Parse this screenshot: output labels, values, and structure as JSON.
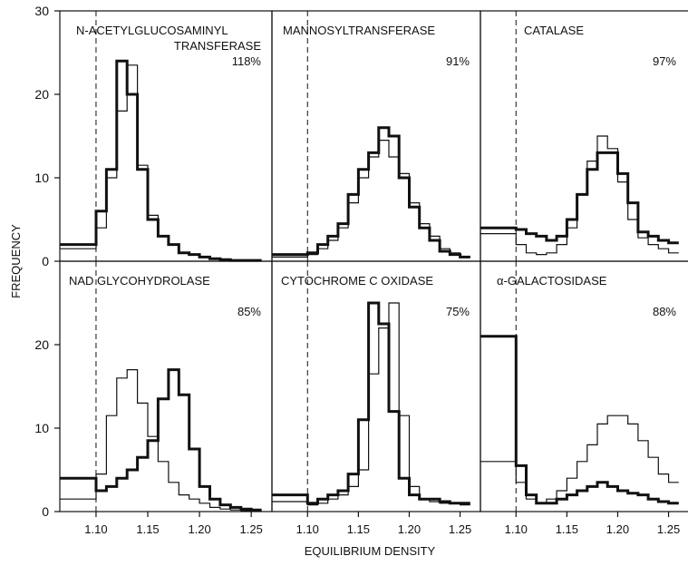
{
  "figure": {
    "ylabel": "FREQUENCY",
    "xlabel": "EQUILIBRIUM DENSITY"
  },
  "chart_data": [
    {
      "type": "step",
      "title_lines": [
        "N-ACETYLGLUCOSAMINYL",
        "TRANSFERASE"
      ],
      "percent": "118%",
      "xlim": [
        1.065,
        1.27
      ],
      "ylim": [
        0,
        30
      ],
      "yticks": [
        "0",
        "10",
        "20",
        "30"
      ],
      "xticks": [],
      "reference_x": 1.1,
      "edges": [
        1.065,
        1.1,
        1.11,
        1.12,
        1.13,
        1.14,
        1.15,
        1.16,
        1.17,
        1.18,
        1.19,
        1.2,
        1.21,
        1.22,
        1.23,
        1.24,
        1.25,
        1.26
      ],
      "series": [
        {
          "style": "thick",
          "values": [
            2,
            6,
            11,
            24,
            20,
            11,
            5,
            3,
            2,
            1,
            0.8,
            0.5,
            0.3,
            0.2,
            0.1,
            0.1,
            0.1
          ]
        },
        {
          "style": "thin",
          "values": [
            1.5,
            4,
            10,
            18,
            23.5,
            11.5,
            5.5,
            3,
            2,
            1,
            0.8,
            0.5,
            0.3,
            0.2,
            0.1,
            0.1,
            0.1
          ]
        }
      ]
    },
    {
      "type": "step",
      "title_lines": [
        "MANNOSYLTRANSFERASE"
      ],
      "percent": "91%",
      "xlim": [
        1.065,
        1.27
      ],
      "ylim": [
        0,
        30
      ],
      "yticks": [],
      "xticks": [],
      "reference_x": 1.1,
      "edges": [
        1.065,
        1.1,
        1.11,
        1.12,
        1.13,
        1.14,
        1.15,
        1.16,
        1.17,
        1.18,
        1.19,
        1.2,
        1.21,
        1.22,
        1.23,
        1.24,
        1.25,
        1.26
      ],
      "series": [
        {
          "style": "thick",
          "values": [
            0.8,
            1,
            2,
            3,
            4.5,
            8,
            11,
            13,
            16,
            15,
            10,
            6.5,
            4,
            2.5,
            1.2,
            0.8,
            0.5
          ]
        },
        {
          "style": "thin",
          "values": [
            0.5,
            0.8,
            1.5,
            2.5,
            4,
            7,
            10,
            12.5,
            14.5,
            12.5,
            10.5,
            7,
            4.5,
            3,
            1.5,
            1,
            0.5
          ]
        }
      ]
    },
    {
      "type": "step",
      "title_lines": [
        "CATALASE"
      ],
      "percent": "97%",
      "xlim": [
        1.065,
        1.27
      ],
      "ylim": [
        0,
        30
      ],
      "yticks": [],
      "xticks": [],
      "reference_x": 1.1,
      "edges": [
        1.065,
        1.1,
        1.11,
        1.12,
        1.13,
        1.14,
        1.15,
        1.16,
        1.17,
        1.18,
        1.19,
        1.2,
        1.21,
        1.22,
        1.23,
        1.24,
        1.25,
        1.26
      ],
      "series": [
        {
          "style": "thick",
          "values": [
            4,
            3.8,
            3.3,
            3,
            2.5,
            3,
            5,
            8,
            11,
            13,
            13,
            10.5,
            7,
            3.5,
            3,
            2.5,
            2.2
          ]
        },
        {
          "style": "thin",
          "values": [
            3.3,
            2,
            1,
            0.8,
            1,
            2,
            4,
            8,
            12,
            15,
            13.5,
            9.5,
            5,
            2.8,
            2,
            1.5,
            1
          ]
        }
      ]
    },
    {
      "type": "step",
      "title_lines": [
        "NAD GLYCOHYDROLASE"
      ],
      "percent": "85%",
      "xlim": [
        1.065,
        1.27
      ],
      "ylim": [
        0,
        30
      ],
      "yticks": [
        "0",
        "10",
        "20"
      ],
      "xticks": [
        "1.10",
        "1.15",
        "1.20",
        "1.25"
      ],
      "reference_x": 1.1,
      "edges": [
        1.065,
        1.1,
        1.11,
        1.12,
        1.13,
        1.14,
        1.15,
        1.16,
        1.17,
        1.18,
        1.19,
        1.2,
        1.21,
        1.22,
        1.23,
        1.24,
        1.25,
        1.26
      ],
      "series": [
        {
          "style": "thick",
          "values": [
            4,
            2.5,
            3,
            4,
            5,
            6.5,
            8.5,
            13.5,
            17,
            14,
            7.5,
            3,
            1.5,
            0.8,
            0.5,
            0.3,
            0.2
          ]
        },
        {
          "style": "thin",
          "values": [
            1.5,
            4.5,
            11.5,
            16,
            17,
            13,
            9,
            6,
            3.5,
            2,
            1.5,
            1,
            0.5,
            0.3,
            0.2,
            0.1,
            0.1
          ]
        }
      ]
    },
    {
      "type": "step",
      "title_lines": [
        "CYTOCHROME C OXIDASE"
      ],
      "percent": "75%",
      "xlim": [
        1.065,
        1.27
      ],
      "ylim": [
        0,
        30
      ],
      "yticks": [],
      "xticks": [
        "1.10",
        "1.15",
        "1.20",
        "1.25"
      ],
      "reference_x": 1.1,
      "edges": [
        1.065,
        1.1,
        1.11,
        1.12,
        1.13,
        1.14,
        1.15,
        1.16,
        1.17,
        1.18,
        1.19,
        1.2,
        1.21,
        1.22,
        1.23,
        1.24,
        1.25,
        1.26
      ],
      "series": [
        {
          "style": "thick",
          "values": [
            2,
            1,
            1.5,
            2,
            2.5,
            4.5,
            11,
            25,
            22.5,
            12,
            4,
            2,
            1.5,
            1.5,
            1.2,
            1,
            1
          ]
        },
        {
          "style": "thin",
          "values": [
            1.2,
            0.8,
            1,
            1.5,
            2,
            3,
            5,
            16.5,
            22,
            25,
            11.5,
            3,
            1.5,
            1.2,
            1,
            1,
            0.8
          ]
        }
      ]
    },
    {
      "type": "step",
      "title_lines": [
        "α-GALACTOSIDASE"
      ],
      "percent": "88%",
      "xlim": [
        1.065,
        1.27
      ],
      "ylim": [
        0,
        30
      ],
      "yticks": [],
      "xticks": [
        "1.10",
        "1.15",
        "1.20",
        "1.25"
      ],
      "reference_x": 1.1,
      "edges": [
        1.065,
        1.1,
        1.11,
        1.12,
        1.13,
        1.14,
        1.15,
        1.16,
        1.17,
        1.18,
        1.19,
        1.2,
        1.21,
        1.22,
        1.23,
        1.24,
        1.25,
        1.26
      ],
      "series": [
        {
          "style": "thick",
          "values": [
            21,
            5.5,
            2,
            1,
            1,
            1.5,
            2,
            2.5,
            3,
            3.5,
            3,
            2.5,
            2.2,
            2,
            1.5,
            1.2,
            1
          ]
        },
        {
          "style": "thin",
          "values": [
            6,
            3.5,
            1.5,
            1,
            1.5,
            2.5,
            4,
            6,
            8,
            10.5,
            11.5,
            11.5,
            10.5,
            8.5,
            6.5,
            4.5,
            3.5
          ]
        }
      ]
    }
  ]
}
